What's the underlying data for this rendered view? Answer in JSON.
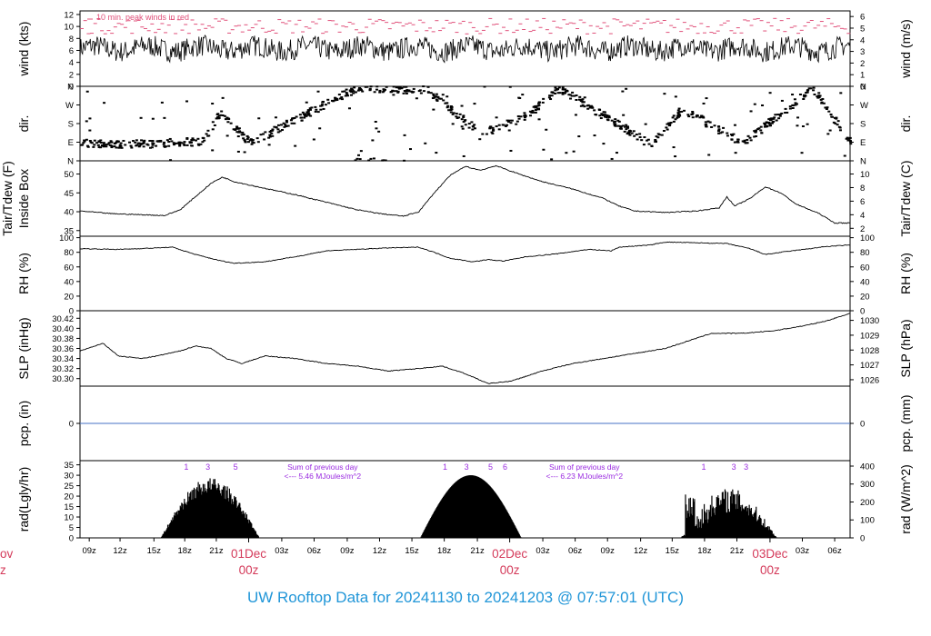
{
  "caption": "UW Rooftop Data for 20241130  to  20241203 @ 07:57:01  (UTC)",
  "colors": {
    "trace": "#000000",
    "peak": "#e0507a",
    "solar_annot": "#9a2be0",
    "precip_line": "#4472c4",
    "date_label": "#d43a5a",
    "caption": "#2196d8"
  },
  "chart_data": [
    {
      "type": "line",
      "panel": "wind",
      "ylabel_left": "wind (kts)",
      "ylabel_right": "wind (m/s)",
      "left_ticks": [
        "0",
        "2",
        "4",
        "6",
        "8",
        "10",
        "12"
      ],
      "right_ticks": [
        "0",
        "1",
        "2",
        "3",
        "4",
        "5",
        "6"
      ],
      "ylim": [
        0,
        12.6
      ],
      "annotation": "10 min. peak winds in red",
      "series": [
        {
          "name": "wind speed",
          "color": "#000000",
          "baseline": 6.3,
          "amplitude": 1.8
        },
        {
          "name": "10 min. peak winds",
          "color": "#e0507a",
          "baseline": 9.8,
          "amplitude": 1.3
        }
      ]
    },
    {
      "type": "scatter",
      "panel": "dir",
      "ylabel_left": "dir.",
      "ylabel_right": "dir.",
      "left_ticks": [
        "N",
        "E",
        "S",
        "W",
        "N"
      ],
      "right_ticks": [
        "N",
        "E",
        "S",
        "W",
        "N"
      ],
      "ylim": [
        0,
        360
      ],
      "direction_trend": [
        [
          0,
          85
        ],
        [
          8,
          80
        ],
        [
          16,
          95
        ],
        [
          18,
          230
        ],
        [
          22,
          85
        ],
        [
          36,
          355
        ],
        [
          45,
          340
        ],
        [
          52,
          130
        ],
        [
          58,
          220
        ],
        [
          62,
          350
        ],
        [
          74,
          80
        ],
        [
          78,
          250
        ],
        [
          86,
          85
        ],
        [
          95,
          350
        ],
        [
          100,
          85
        ]
      ]
    },
    {
      "type": "line",
      "panel": "temp",
      "ylabel_left": [
        "Tair/Tdew (F)",
        "Inside Box"
      ],
      "ylabel_right": "Tair/Tdew (C)",
      "left_ticks": [
        "35",
        "40",
        "45",
        "50"
      ],
      "right_ticks": [
        "2",
        "4",
        "6",
        "8",
        "10"
      ],
      "ylim": [
        33.5,
        53.5
      ],
      "series": [
        {
          "name": "Tair",
          "color": "#000000",
          "points": [
            [
              0,
              40.2
            ],
            [
              4,
              39.5
            ],
            [
              8,
              39.2
            ],
            [
              11,
              39.0
            ],
            [
              13,
              40.5
            ],
            [
              15,
              44
            ],
            [
              17,
              47.5
            ],
            [
              18.5,
              49.2
            ],
            [
              20,
              48
            ],
            [
              24,
              46.2
            ],
            [
              28,
              44.5
            ],
            [
              32,
              42.5
            ],
            [
              36,
              40.5
            ],
            [
              39,
              39.5
            ],
            [
              42,
              38.8
            ],
            [
              44,
              40
            ],
            [
              46,
              45
            ],
            [
              48,
              49.5
            ],
            [
              50,
              52
            ],
            [
              52,
              51
            ],
            [
              54,
              52.2
            ],
            [
              57,
              50
            ],
            [
              60,
              48
            ],
            [
              64,
              46
            ],
            [
              68,
              43.5
            ],
            [
              70,
              41.5
            ],
            [
              72,
              40.2
            ],
            [
              76,
              39.8
            ],
            [
              80,
              40.2
            ],
            [
              83,
              41
            ],
            [
              84,
              44
            ],
            [
              85,
              41.5
            ],
            [
              87,
              43.5
            ],
            [
              89,
              46.6
            ],
            [
              91,
              45
            ],
            [
              93,
              42
            ],
            [
              96,
              39.5
            ],
            [
              98,
              37
            ],
            [
              100,
              37
            ]
          ]
        }
      ]
    },
    {
      "type": "line",
      "panel": "rh",
      "ylabel_left": "RH (%)",
      "ylabel_right": "RH (%)",
      "left_ticks": [
        "0",
        "20",
        "40",
        "60",
        "80",
        "100"
      ],
      "right_ticks": [
        "0",
        "20",
        "40",
        "60",
        "80",
        "100"
      ],
      "ylim": [
        0,
        102
      ],
      "series": [
        {
          "name": "RH",
          "color": "#000000",
          "points": [
            [
              0,
              85
            ],
            [
              5,
              84
            ],
            [
              10,
              86
            ],
            [
              12,
              87
            ],
            [
              15,
              77
            ],
            [
              18,
              69
            ],
            [
              20,
              65
            ],
            [
              24,
              67
            ],
            [
              28,
              74
            ],
            [
              32,
              82
            ],
            [
              36,
              84
            ],
            [
              40,
              86
            ],
            [
              44,
              87
            ],
            [
              46,
              80
            ],
            [
              48,
              72
            ],
            [
              51,
              67
            ],
            [
              53,
              70
            ],
            [
              55,
              68
            ],
            [
              58,
              74
            ],
            [
              62,
              78
            ],
            [
              66,
              84
            ],
            [
              69,
              82
            ],
            [
              70,
              87
            ],
            [
              74,
              90
            ],
            [
              76,
              94
            ],
            [
              80,
              93
            ],
            [
              84,
              92
            ],
            [
              87,
              85
            ],
            [
              89,
              77
            ],
            [
              91,
              80
            ],
            [
              94,
              84
            ],
            [
              97,
              88
            ],
            [
              100,
              90
            ]
          ]
        }
      ]
    },
    {
      "type": "line",
      "panel": "slp",
      "ylabel_left": "SLP (inHg)",
      "ylabel_right": "SLP (hPa)",
      "left_ticks": [
        "30.30",
        "30.32",
        "30.34",
        "30.36",
        "30.38",
        "30.40",
        "30.42"
      ],
      "right_ticks": [
        "1026",
        "1027",
        "1028",
        "1029",
        "1030"
      ],
      "ylim": [
        30.285,
        30.435
      ],
      "series": [
        {
          "name": "SLP",
          "color": "#000000",
          "points": [
            [
              0,
              30.355
            ],
            [
              3,
              30.37
            ],
            [
              5,
              30.345
            ],
            [
              8,
              30.34
            ],
            [
              10,
              30.345
            ],
            [
              13,
              30.355
            ],
            [
              15,
              30.365
            ],
            [
              17,
              30.36
            ],
            [
              19,
              30.34
            ],
            [
              21,
              30.33
            ],
            [
              24,
              30.345
            ],
            [
              28,
              30.34
            ],
            [
              32,
              30.33
            ],
            [
              36,
              30.325
            ],
            [
              40,
              30.315
            ],
            [
              44,
              30.32
            ],
            [
              47,
              30.325
            ],
            [
              50,
              30.31
            ],
            [
              53,
              30.29
            ],
            [
              56,
              30.295
            ],
            [
              60,
              30.315
            ],
            [
              64,
              30.33
            ],
            [
              68,
              30.34
            ],
            [
              72,
              30.35
            ],
            [
              76,
              30.36
            ],
            [
              79,
              30.375
            ],
            [
              82,
              30.39
            ],
            [
              86,
              30.39
            ],
            [
              90,
              30.395
            ],
            [
              94,
              30.405
            ],
            [
              97,
              30.415
            ],
            [
              100,
              30.43
            ]
          ]
        }
      ]
    },
    {
      "type": "line",
      "panel": "pcp",
      "ylabel_left": "pcp. (in)",
      "ylabel_right": "pcp. (mm)",
      "left_ticks": [
        "0"
      ],
      "right_ticks": [
        "0"
      ],
      "ylim": [
        -1,
        1
      ],
      "series": [
        {
          "name": "precipitation",
          "color": "#4472c4",
          "points": [
            [
              0,
              0
            ],
            [
              100,
              0
            ]
          ]
        }
      ]
    },
    {
      "type": "area",
      "panel": "rad",
      "ylabel_left": "rad(Lgly/hr)",
      "ylabel_right": "rad (W/m^2)",
      "left_ticks": [
        "0",
        "5",
        "10",
        "15",
        "20",
        "25",
        "30",
        "35"
      ],
      "right_ticks": [
        "0",
        "100",
        "200",
        "300",
        "400"
      ],
      "ylim": [
        0,
        37
      ],
      "days": [
        {
          "start": 10.5,
          "end": 23.3,
          "peak": 29,
          "shape": "cloudy"
        },
        {
          "start": 44.2,
          "end": 57.3,
          "peak": 30,
          "shape": "clear"
        },
        {
          "start": 78.0,
          "end": 90.5,
          "peak": 24,
          "shape": "broken"
        }
      ],
      "hour_marks": [
        {
          "label": "1",
          "x": 13.8
        },
        {
          "label": "3",
          "x": 16.6
        },
        {
          "label": "5",
          "x": 20.2
        },
        {
          "label": "1",
          "x": 47.4
        },
        {
          "label": "3",
          "x": 50.2
        },
        {
          "label": "5",
          "x": 53.3
        },
        {
          "label": "6",
          "x": 55.2
        },
        {
          "label": "1",
          "x": 81.0
        },
        {
          "label": "3",
          "x": 84.9
        },
        {
          "label": "3",
          "x": 86.5
        }
      ],
      "daily_sum_title": "Sum of previous day",
      "daily_sums": [
        {
          "text": "<--- 5.46 MJoules/m^2",
          "x": 31.5
        },
        {
          "text": "<--- 6.23 MJoules/m^2",
          "x": 65.5
        }
      ]
    }
  ],
  "time_axis": {
    "ticks": [
      {
        "label": "09z",
        "x": 1.2
      },
      {
        "label": "12z",
        "x": 5.2
      },
      {
        "label": "15z",
        "x": 9.6
      },
      {
        "label": "18z",
        "x": 13.6
      },
      {
        "label": "21z",
        "x": 17.7
      },
      {
        "label": "03z",
        "x": 26.2
      },
      {
        "label": "06z",
        "x": 30.4
      },
      {
        "label": "09z",
        "x": 34.7
      },
      {
        "label": "12z",
        "x": 38.9
      },
      {
        "label": "15z",
        "x": 43.1
      },
      {
        "label": "18z",
        "x": 47.3
      },
      {
        "label": "21z",
        "x": 51.6
      },
      {
        "label": "03z",
        "x": 60.1
      },
      {
        "label": "06z",
        "x": 64.3
      },
      {
        "label": "09z",
        "x": 68.5
      },
      {
        "label": "12z",
        "x": 72.8
      },
      {
        "label": "15z",
        "x": 76.9
      },
      {
        "label": "18z",
        "x": 81.1
      },
      {
        "label": "21z",
        "x": 85.3
      },
      {
        "label": "03z",
        "x": 93.8
      },
      {
        "label": "06z",
        "x": 98.0
      }
    ],
    "date_marks": [
      {
        "label": "01Dec",
        "sub": "00z",
        "x": 21.9
      },
      {
        "label": "02Dec",
        "sub": "00z",
        "x": 55.8
      },
      {
        "label": "03Dec",
        "sub": "00z",
        "x": 89.6
      }
    ],
    "cut_edge": {
      "label": "ov",
      "sub": "z"
    }
  }
}
